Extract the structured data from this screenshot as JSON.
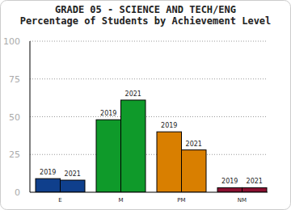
{
  "chart_data": {
    "type": "bar",
    "title": "GRADE 05 - SCIENCE AND TECH/ENG",
    "subtitle": "Percentage of Students by Achievement Level",
    "categories": [
      "E",
      "M",
      "PM",
      "NM"
    ],
    "series": [
      {
        "name": "2019",
        "values": [
          9,
          48,
          40,
          3
        ]
      },
      {
        "name": "2021",
        "values": [
          8,
          61,
          28,
          3
        ]
      }
    ],
    "colors": [
      "#0f3f8c",
      "#0f9a2a",
      "#d97f00",
      "#8a1030"
    ],
    "ylim": [
      0,
      100
    ],
    "yticks": [
      0,
      25,
      50,
      75,
      100
    ],
    "grid": true
  }
}
